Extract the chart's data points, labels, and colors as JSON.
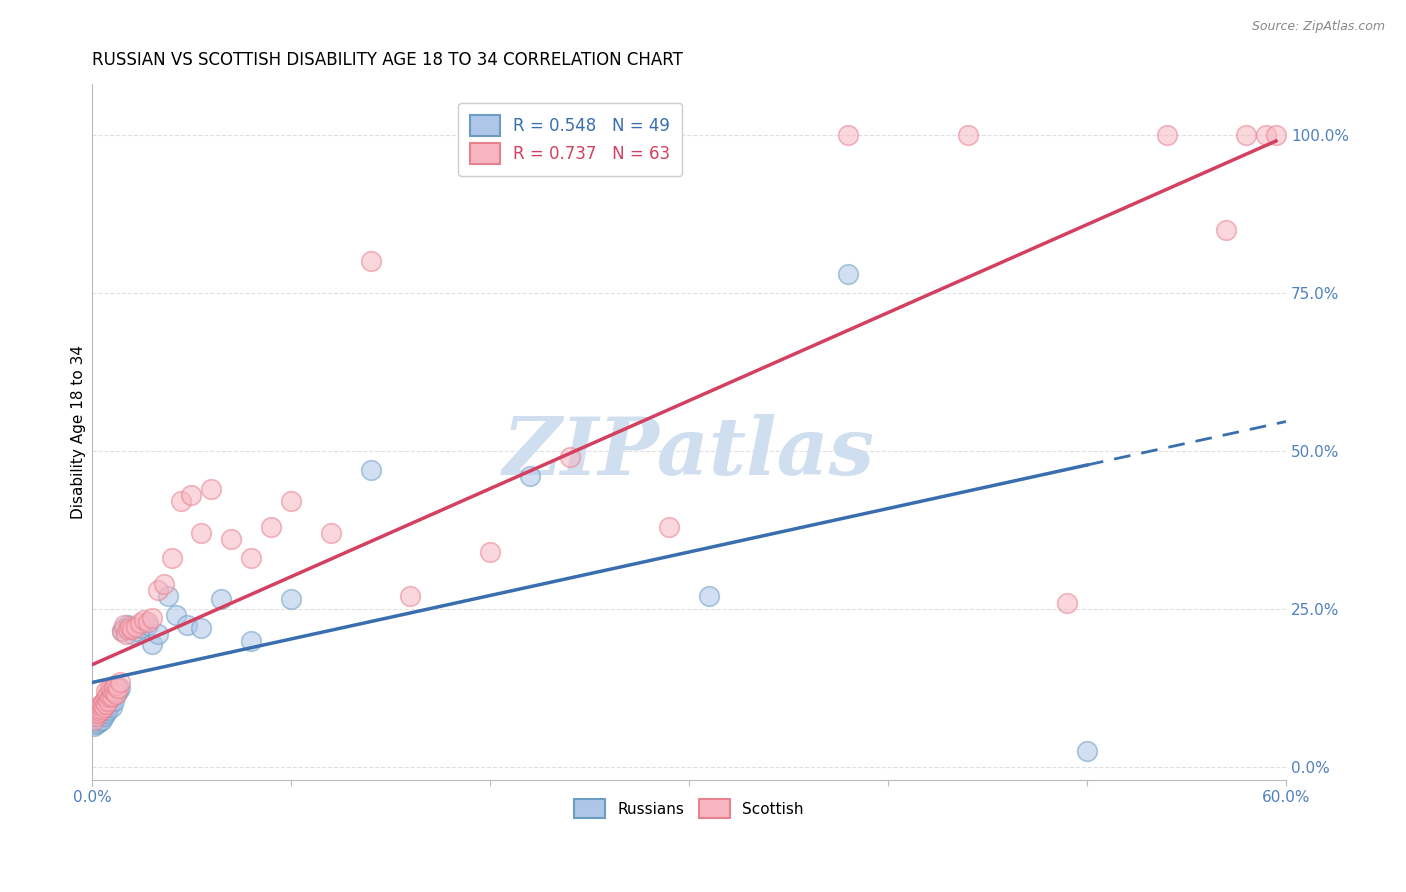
{
  "title": "RUSSIAN VS SCOTTISH DISABILITY AGE 18 TO 34 CORRELATION CHART",
  "source": "Source: ZipAtlas.com",
  "ylabel": "Disability Age 18 to 34",
  "xlim": [
    0.0,
    0.6
  ],
  "ylim": [
    -0.02,
    1.08
  ],
  "xticks": [
    0.0,
    0.1,
    0.2,
    0.3,
    0.4,
    0.5,
    0.6
  ],
  "xtick_labels": [
    "0.0%",
    "",
    "",
    "",
    "",
    "",
    "60.0%"
  ],
  "yticks": [
    0.0,
    0.25,
    0.5,
    0.75,
    1.0
  ],
  "ytick_labels": [
    "0.0%",
    "25.0%",
    "50.0%",
    "75.0%",
    "100.0%"
  ],
  "russian_fill_color": "#aec6e8",
  "russian_edge_color": "#6b9dc2",
  "scottish_fill_color": "#f7b6c2",
  "scottish_edge_color": "#e8808e",
  "russian_line_color": "#3a6faf",
  "scottish_line_color": "#d44060",
  "watermark_color": "#d0dff0",
  "legend_r_russian": "R = 0.548",
  "legend_n_russian": "N = 49",
  "legend_r_scottish": "R = 0.737",
  "legend_n_scottish": "N = 63",
  "russians_x": [
    0.001,
    0.001,
    0.002,
    0.002,
    0.003,
    0.003,
    0.003,
    0.004,
    0.004,
    0.004,
    0.005,
    0.005,
    0.005,
    0.006,
    0.006,
    0.007,
    0.007,
    0.007,
    0.008,
    0.008,
    0.009,
    0.009,
    0.01,
    0.01,
    0.011,
    0.012,
    0.013,
    0.014,
    0.015,
    0.016,
    0.018,
    0.02,
    0.022,
    0.025,
    0.028,
    0.03,
    0.033,
    0.038,
    0.042,
    0.048,
    0.055,
    0.065,
    0.08,
    0.1,
    0.14,
    0.22,
    0.31,
    0.38,
    0.5
  ],
  "russians_y": [
    0.065,
    0.075,
    0.068,
    0.08,
    0.07,
    0.078,
    0.085,
    0.072,
    0.082,
    0.09,
    0.075,
    0.088,
    0.095,
    0.08,
    0.092,
    0.085,
    0.095,
    0.105,
    0.09,
    0.1,
    0.098,
    0.108,
    0.095,
    0.11,
    0.105,
    0.115,
    0.12,
    0.125,
    0.215,
    0.22,
    0.225,
    0.21,
    0.215,
    0.22,
    0.225,
    0.195,
    0.21,
    0.27,
    0.24,
    0.225,
    0.22,
    0.265,
    0.2,
    0.265,
    0.47,
    0.46,
    0.27,
    0.78,
    0.025
  ],
  "scottish_x": [
    0.001,
    0.001,
    0.002,
    0.002,
    0.003,
    0.003,
    0.004,
    0.004,
    0.005,
    0.005,
    0.006,
    0.006,
    0.007,
    0.007,
    0.007,
    0.008,
    0.008,
    0.009,
    0.009,
    0.01,
    0.01,
    0.011,
    0.011,
    0.012,
    0.012,
    0.013,
    0.014,
    0.015,
    0.016,
    0.017,
    0.018,
    0.019,
    0.02,
    0.022,
    0.024,
    0.026,
    0.028,
    0.03,
    0.033,
    0.036,
    0.04,
    0.045,
    0.05,
    0.055,
    0.06,
    0.07,
    0.08,
    0.09,
    0.1,
    0.12,
    0.14,
    0.16,
    0.2,
    0.24,
    0.29,
    0.38,
    0.44,
    0.49,
    0.54,
    0.57,
    0.58,
    0.59,
    0.595
  ],
  "scottish_y": [
    0.075,
    0.085,
    0.08,
    0.09,
    0.085,
    0.092,
    0.088,
    0.098,
    0.092,
    0.1,
    0.095,
    0.105,
    0.1,
    0.11,
    0.12,
    0.105,
    0.115,
    0.11,
    0.125,
    0.112,
    0.122,
    0.118,
    0.128,
    0.115,
    0.13,
    0.125,
    0.135,
    0.215,
    0.225,
    0.21,
    0.218,
    0.222,
    0.218,
    0.222,
    0.228,
    0.232,
    0.23,
    0.235,
    0.28,
    0.29,
    0.33,
    0.42,
    0.43,
    0.37,
    0.44,
    0.36,
    0.33,
    0.38,
    0.42,
    0.37,
    0.8,
    0.27,
    0.34,
    0.49,
    0.38,
    1.0,
    1.0,
    0.26,
    1.0,
    0.85,
    1.0,
    1.0,
    1.0
  ],
  "background_color": "#ffffff",
  "grid_color": "#e0e0e0",
  "tick_color": "#5080c0",
  "title_fontsize": 12,
  "axis_label_fontsize": 11,
  "tick_fontsize": 11,
  "source_fontsize": 9
}
